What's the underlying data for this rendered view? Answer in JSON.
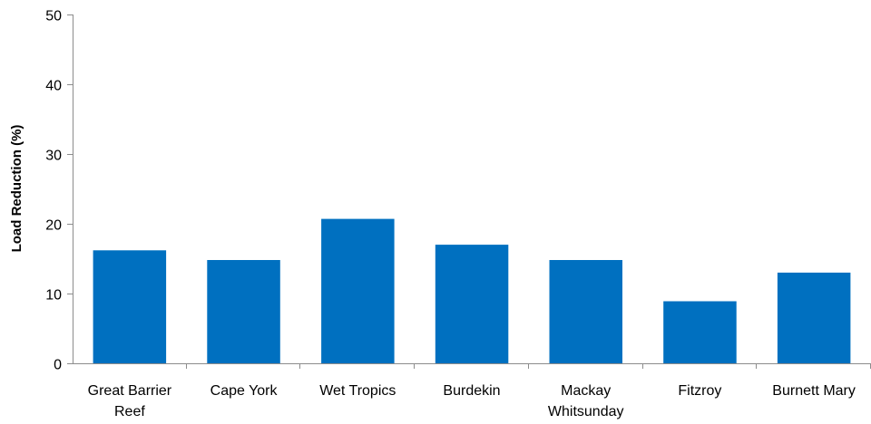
{
  "chart_data": {
    "type": "bar",
    "title": "",
    "xlabel": "",
    "ylabel": "Load Reduction (%)",
    "ylim": [
      0,
      50
    ],
    "yticks": [
      0,
      10,
      20,
      30,
      40,
      50
    ],
    "grid": false,
    "legend": "none",
    "bar_color": "#0070C0",
    "categories": [
      [
        "Great Barrier",
        "Reef"
      ],
      [
        "Cape York"
      ],
      [
        "Wet Tropics"
      ],
      [
        "Burdekin"
      ],
      [
        "Mackay",
        "Whitsunday"
      ],
      [
        "Fitzroy"
      ],
      [
        "Burnett Mary"
      ]
    ],
    "values": [
      16.2,
      14.8,
      20.7,
      17.0,
      14.8,
      8.9,
      13.0
    ]
  }
}
